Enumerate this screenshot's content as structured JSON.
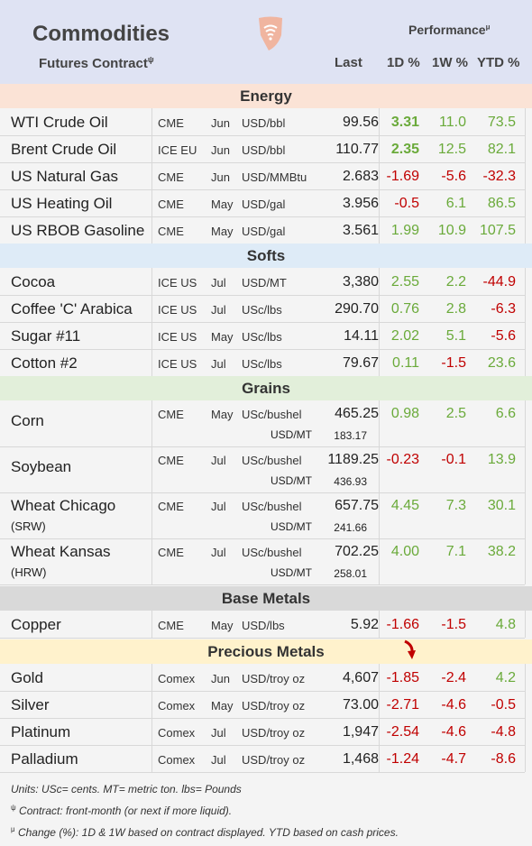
{
  "header": {
    "title": "Commodities",
    "subtitle": "Futures Contract",
    "subtitle_sup": "ψ",
    "performance": "Performance",
    "performance_sup": "μ",
    "col_last": "Last",
    "col_1d": "1D %",
    "col_1w": "1W %",
    "col_ytd": "YTD %"
  },
  "energy": {
    "label": "Energy",
    "rows": [
      {
        "name": "WTI Crude Oil",
        "exch": "CME",
        "month": "Jun",
        "unit": "USD/bbl",
        "last": "99.56",
        "d1": "3.31",
        "w1": "11.0",
        "ytd": "73.5"
      },
      {
        "name": "Brent Crude Oil",
        "exch": "ICE EU",
        "month": "Jun",
        "unit": "USD/bbl",
        "last": "110.77",
        "d1": "2.35",
        "w1": "12.5",
        "ytd": "82.1"
      },
      {
        "name": "US Natural Gas",
        "exch": "CME",
        "month": "Jun",
        "unit": "USD/MMBtu",
        "last": "2.683",
        "d1": "-1.69",
        "w1": "-5.6",
        "ytd": "-32.3"
      },
      {
        "name": "US Heating Oil",
        "exch": "CME",
        "month": "May",
        "unit": "USD/gal",
        "last": "3.956",
        "d1": "-0.5",
        "w1": "6.1",
        "ytd": "86.5"
      },
      {
        "name": "US RBOB Gasoline",
        "exch": "CME",
        "month": "May",
        "unit": "USD/gal",
        "last": "3.561",
        "d1": "1.99",
        "w1": "10.9",
        "ytd": "107.5"
      }
    ]
  },
  "softs": {
    "label": "Softs",
    "rows": [
      {
        "name": "Cocoa",
        "exch": "ICE US",
        "month": "Jul",
        "unit": "USD/MT",
        "last": "3,380",
        "d1": "2.55",
        "w1": "2.2",
        "ytd": "-44.9"
      },
      {
        "name": "Coffee 'C' Arabica",
        "exch": "ICE US",
        "month": "Jul",
        "unit": "USc/lbs",
        "last": "290.70",
        "d1": "0.76",
        "w1": "2.8",
        "ytd": "-6.3"
      },
      {
        "name": "Sugar #11",
        "exch": "ICE US",
        "month": "May",
        "unit": "USc/lbs",
        "last": "14.11",
        "d1": "2.02",
        "w1": "5.1",
        "ytd": "-5.6"
      },
      {
        "name": "Cotton #2",
        "exch": "ICE US",
        "month": "Jul",
        "unit": "USc/lbs",
        "last": "79.67",
        "d1": "0.11",
        "w1": "-1.5",
        "ytd": "23.6"
      }
    ]
  },
  "grains": {
    "label": "Grains",
    "rows": [
      {
        "name": "Corn",
        "sub": "",
        "exch": "CME",
        "month": "May",
        "unit": "USc/bushel",
        "last": "465.25",
        "unit2": "USD/MT",
        "last2": "183.17",
        "d1": "0.98",
        "w1": "2.5",
        "ytd": "6.6"
      },
      {
        "name": "Soybean",
        "sub": "",
        "exch": "CME",
        "month": "Jul",
        "unit": "USc/bushel",
        "last": "1189.25",
        "unit2": "USD/MT",
        "last2": "436.93",
        "d1": "-0.23",
        "w1": "-0.1",
        "ytd": "13.9"
      },
      {
        "name": "Wheat Chicago",
        "sub": "(SRW)",
        "exch": "CME",
        "month": "Jul",
        "unit": "USc/bushel",
        "last": "657.75",
        "unit2": "USD/MT",
        "last2": "241.66",
        "d1": "4.45",
        "w1": "7.3",
        "ytd": "30.1"
      },
      {
        "name": "Wheat Kansas",
        "sub": "(HRW)",
        "exch": "CME",
        "month": "Jul",
        "unit": "USc/bushel",
        "last": "702.25",
        "unit2": "USD/MT",
        "last2": "258.01",
        "d1": "4.00",
        "w1": "7.1",
        "ytd": "38.2"
      }
    ]
  },
  "base": {
    "label": "Base Metals",
    "rows": [
      {
        "name": "Copper",
        "exch": "CME",
        "month": "May",
        "unit": "USD/lbs",
        "last": "5.92",
        "d1": "-1.66",
        "w1": "-1.5",
        "ytd": "4.8"
      }
    ]
  },
  "precious": {
    "label": "Precious Metals",
    "rows": [
      {
        "name": "Gold",
        "exch": "Comex",
        "month": "Jun",
        "unit": "USD/troy oz",
        "last": "4,607",
        "d1": "-1.85",
        "w1": "-2.4",
        "ytd": "4.2"
      },
      {
        "name": "Silver",
        "exch": "Comex",
        "month": "May",
        "unit": "USD/troy oz",
        "last": "73.00",
        "d1": "-2.71",
        "w1": "-4.6",
        "ytd": "-0.5"
      },
      {
        "name": "Platinum",
        "exch": "Comex",
        "month": "Jul",
        "unit": "USD/troy oz",
        "last": "1,947",
        "d1": "-2.54",
        "w1": "-4.6",
        "ytd": "-4.8"
      },
      {
        "name": "Palladium",
        "exch": "Comex",
        "month": "Jul",
        "unit": "USD/troy oz",
        "last": "1,468",
        "d1": "-1.24",
        "w1": "-4.7",
        "ytd": "-8.6"
      }
    ]
  },
  "notes": {
    "units": "Units: USc= cents.  MT= metric ton.  lbs= Pounds",
    "contract_sym": "ψ",
    "contract": " Contract: front-month (or next if more liquid).",
    "change_sym": "μ",
    "change": " Change (%): 1D & 1W based on contract displayed. YTD based on cash prices."
  },
  "colors": {
    "header_bg": "#dfe3f3",
    "energy_bg": "#fbe3d6",
    "softs_bg": "#deebf7",
    "grains_bg": "#e2efda",
    "base_bg": "#d9d9d9",
    "precious_bg": "#fff2cc",
    "positive": "#6aaa3a",
    "negative": "#c00000",
    "logo": "#f0b5a0"
  },
  "icons": {
    "logo": "wifi-shield-logo-icon",
    "arrow": "red-curved-arrow-icon"
  }
}
